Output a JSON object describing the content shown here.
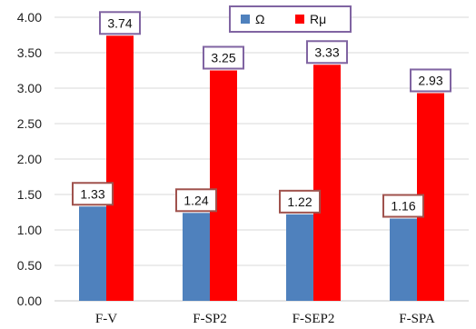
{
  "chart_data": {
    "type": "bar",
    "categories": [
      "F-V",
      "F-SP2",
      "F-SEP2",
      "F-SPA"
    ],
    "series": [
      {
        "name": "Ω",
        "color": "#4F81BD",
        "label_border": "#A0524D",
        "values": [
          1.33,
          1.24,
          1.22,
          1.16
        ],
        "labels": [
          "1.33",
          "1.24",
          "1.22",
          "1.16"
        ]
      },
      {
        "name": "Rμ",
        "color": "#FF0000",
        "label_border": "#8064A2",
        "values": [
          3.74,
          3.25,
          3.33,
          2.93
        ],
        "labels": [
          "3.74",
          "3.25",
          "3.33",
          "2.93"
        ]
      }
    ],
    "ylim": [
      0,
      4
    ],
    "yticks": [
      "0.00",
      "0.50",
      "1.00",
      "1.50",
      "2.00",
      "2.50",
      "3.00",
      "3.50",
      "4.00"
    ],
    "grid": true,
    "legend": "top-center",
    "legend_border": "#8064A2"
  }
}
